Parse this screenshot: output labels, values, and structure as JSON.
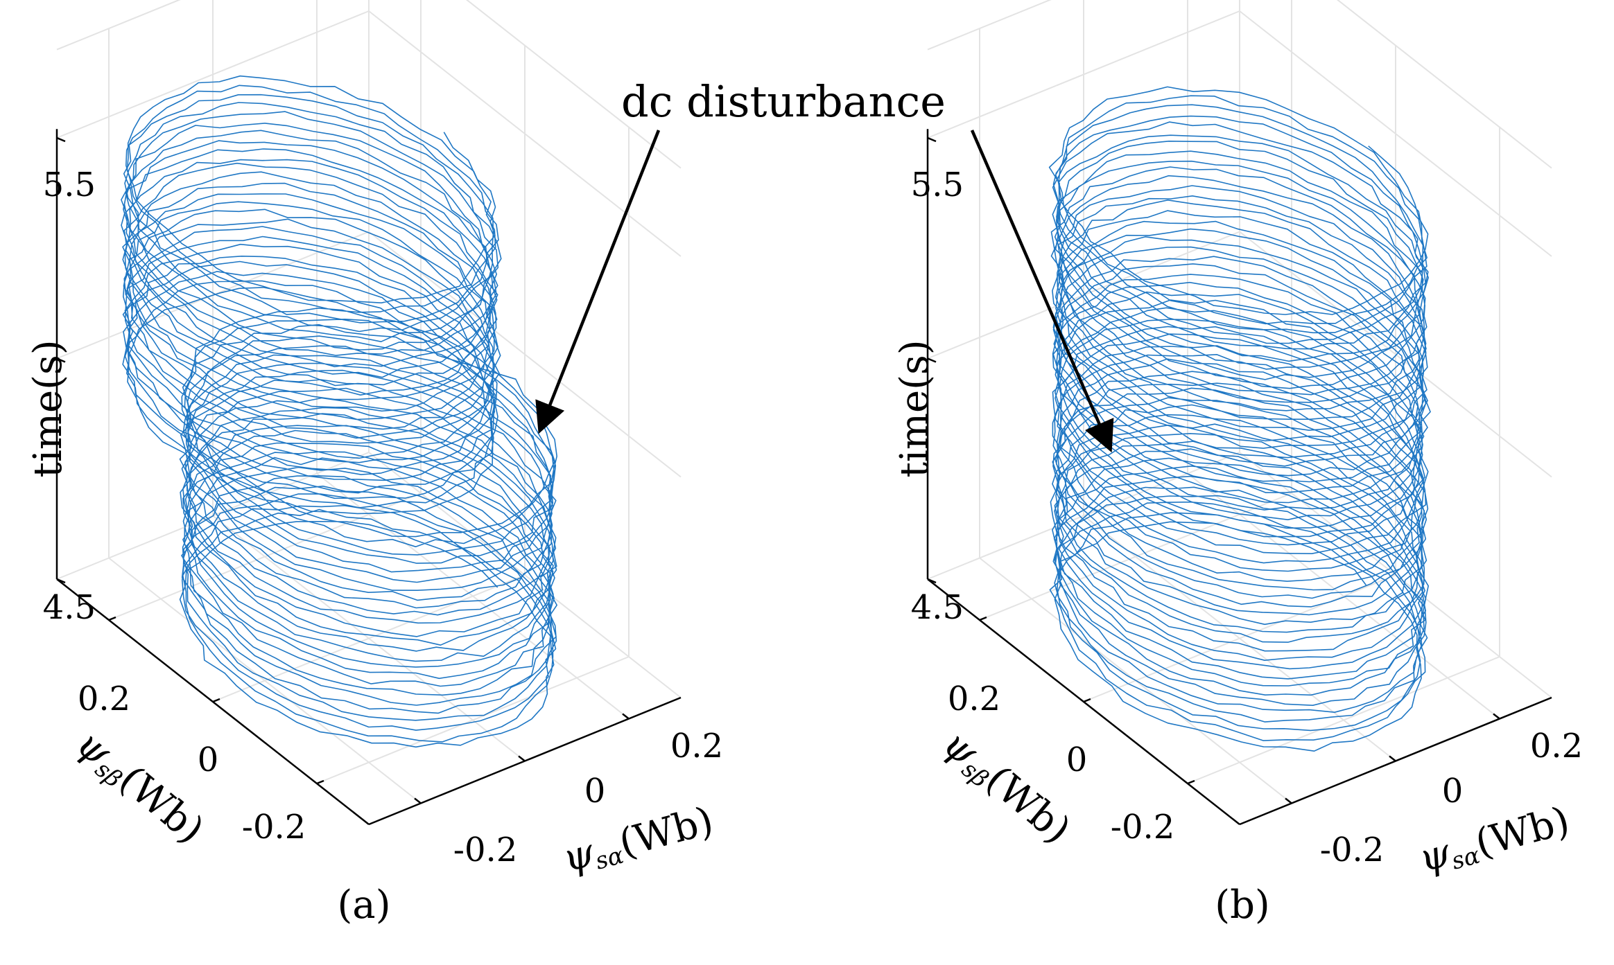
{
  "annotation": {
    "text": "dc disturbance"
  },
  "chart_data": [
    {
      "type": "line",
      "id": "a",
      "caption": "(a)",
      "zlabel": "time(s)",
      "xlabel": {
        "symbol": "ψ",
        "subscript": "sα",
        "unit": "(Wb)"
      },
      "ylabel": {
        "symbol": "ψ",
        "subscript": "sβ",
        "unit": "(Wb)"
      },
      "zticks": [
        "4.5",
        "5.5"
      ],
      "xticks": [
        "-0.2",
        "0",
        "0.2"
      ],
      "yticks": [
        "-0.2",
        "0",
        "0.2"
      ],
      "zlim": [
        4.5,
        5.5
      ],
      "xlim": [
        -0.3,
        0.3
      ],
      "ylim": [
        -0.3,
        0.3
      ],
      "grid": true,
      "color": "#1f77c4",
      "trace": {
        "t_start": 4.5,
        "t_end": 5.5,
        "turns": 50,
        "radius": 0.25,
        "dc_offset_before": 0.0,
        "dc_offset_after": -0.08,
        "disturbance_time": 5.0
      }
    },
    {
      "type": "line",
      "id": "b",
      "caption": "(b)",
      "zlabel": "time(s)",
      "xlabel": {
        "symbol": "ψ",
        "subscript": "sα",
        "unit": "(Wb)"
      },
      "ylabel": {
        "symbol": "ψ",
        "subscript": "sβ",
        "unit": "(Wb)"
      },
      "zticks": [
        "4.5",
        "5.5"
      ],
      "xticks": [
        "-0.2",
        "0",
        "0.2"
      ],
      "yticks": [
        "-0.2",
        "0",
        "0.2"
      ],
      "zlim": [
        4.5,
        5.5
      ],
      "xlim": [
        -0.3,
        0.3
      ],
      "ylim": [
        -0.3,
        0.3
      ],
      "grid": true,
      "color": "#1f77c4",
      "trace": {
        "t_start": 4.5,
        "t_end": 5.5,
        "turns": 50,
        "radius": 0.25,
        "dc_offset_before": 0.0,
        "dc_offset_after": 0.0,
        "disturbance_time": 5.0
      }
    }
  ]
}
